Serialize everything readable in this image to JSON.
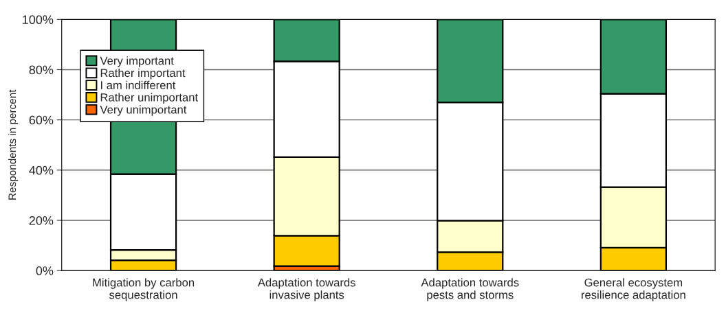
{
  "chart_data": {
    "type": "bar",
    "stacked": true,
    "ylabel": "Respondents in percent",
    "categories": [
      "Mitigation by carbon\nsequestration",
      "Adaptation towards\ninvasive plants",
      "Adaptation towards\npests and storms",
      "General ecosystem\nresilience adaptation"
    ],
    "series": [
      {
        "name": "Very unimportant",
        "color": "#ff6600",
        "values": [
          0,
          1.8,
          null,
          null
        ]
      },
      {
        "name": "Rather unimportant",
        "color": "#ffcc00",
        "values": [
          4.1,
          12.1,
          7.3,
          9.1
        ]
      },
      {
        "name": "I am indifferent",
        "color": "#ffffcc",
        "values": [
          4.1,
          31.3,
          12.6,
          24.1
        ]
      },
      {
        "name": "Rather important",
        "color": "#ffffff",
        "values": [
          30.2,
          38.1,
          47.1,
          37.2
        ]
      },
      {
        "name": "Very important",
        "color": "#339966",
        "values": [
          61.6,
          16.7,
          33.0,
          29.6
        ]
      }
    ],
    "ylim": [
      0,
      100
    ],
    "yticks": [
      {
        "value": 0,
        "label": "0%"
      },
      {
        "value": 20,
        "label": "20%"
      },
      {
        "value": 40,
        "label": "40%"
      },
      {
        "value": 60,
        "label": "60%"
      },
      {
        "value": 80,
        "label": "80%"
      },
      {
        "value": 100,
        "label": "100%"
      }
    ],
    "grid": "y",
    "legend": "top left"
  }
}
